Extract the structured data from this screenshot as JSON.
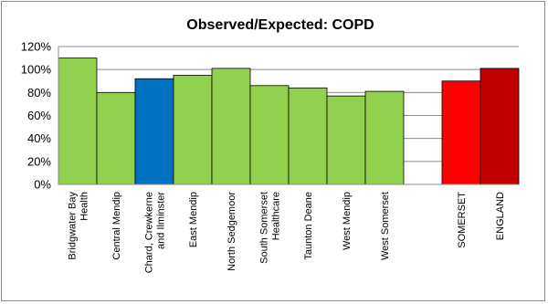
{
  "chart_data": {
    "type": "bar",
    "title": "Observed/Expected: COPD",
    "xlabel": "",
    "ylabel": "",
    "ylim": [
      0,
      1.2
    ],
    "yticks": [
      "0%",
      "20%",
      "40%",
      "60%",
      "80%",
      "100%",
      "120%"
    ],
    "grid": true,
    "legend": "none",
    "categories": [
      "Bridgwater Bay Health",
      "Central Mendip",
      "Chard, Crewkerne and Ilminster",
      "East Mendip",
      "North Sedgemoor",
      "South Somerset Healthcare",
      "Taunton Deane",
      "West Mendip",
      "West Somerset",
      "",
      "SOMERSET",
      "ENGLAND"
    ],
    "category_lines": [
      [
        "Bridgwater Bay",
        "Health"
      ],
      [
        "Central Mendip"
      ],
      [
        "Chard, Crewkerne",
        "and Ilminster"
      ],
      [
        "East Mendip"
      ],
      [
        "North Sedgemoor"
      ],
      [
        "South Somerset",
        "Healthcare"
      ],
      [
        "Taunton Deane"
      ],
      [
        "West Mendip"
      ],
      [
        "West Somerset"
      ],
      [],
      [
        "SOMERSET"
      ],
      [
        "ENGLAND"
      ]
    ],
    "values": [
      1.1,
      0.8,
      0.92,
      0.95,
      1.01,
      0.86,
      0.84,
      0.77,
      0.81,
      null,
      0.9,
      1.01
    ],
    "colors": [
      "#92d050",
      "#92d050",
      "#0070c0",
      "#92d050",
      "#92d050",
      "#92d050",
      "#92d050",
      "#92d050",
      "#92d050",
      null,
      "#ff0000",
      "#c00000"
    ]
  }
}
